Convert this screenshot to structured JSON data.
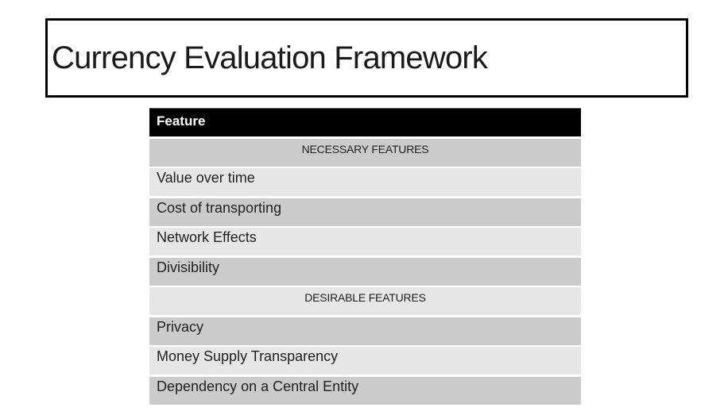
{
  "slide": {
    "title": "Currency Evaluation Framework"
  },
  "table": {
    "header_label": "Feature",
    "rows": [
      "NECESSARY FEATURES",
      "Value over time",
      "Cost of transporting",
      "Network Effects",
      "Divisibility",
      "DESIRABLE FEATURES",
      "Privacy",
      "Money Supply Transparency",
      "Dependency on a Central Entity"
    ]
  },
  "colors": {
    "slide_background": "#ffffff",
    "title_border": "#000000",
    "title_text": "#1a1a1a",
    "table_header_bg": "#000000",
    "table_header_text": "#ffffff",
    "row_band_dark": "#cbcbcb",
    "row_band_light": "#e6e6e6",
    "row_text": "#1f1f1f"
  }
}
